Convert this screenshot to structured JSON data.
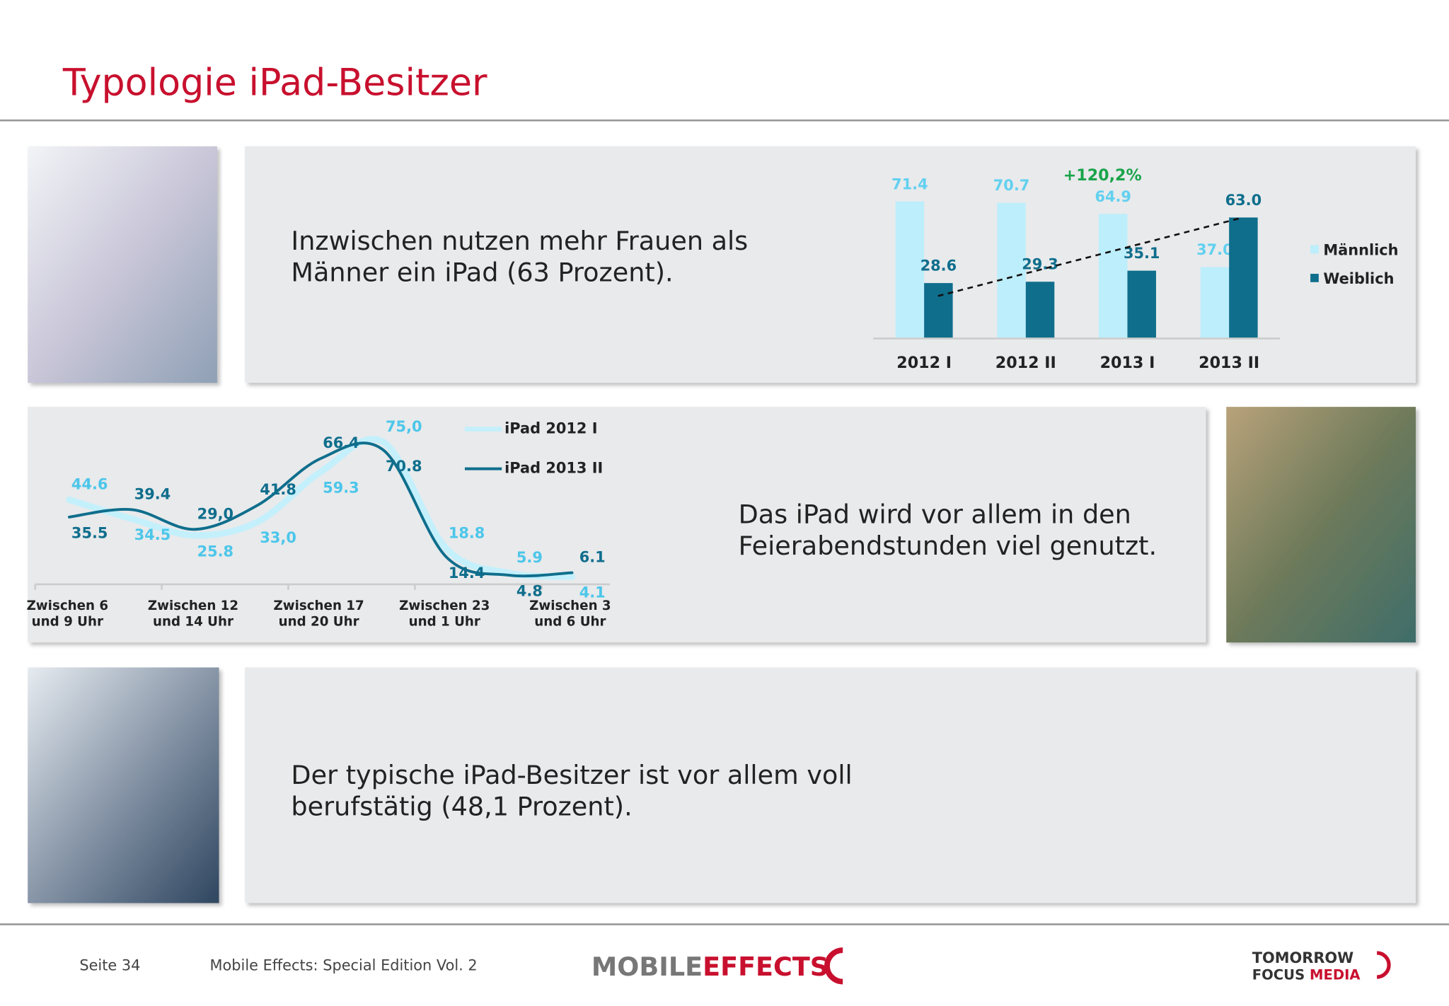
{
  "title": "Typologie iPad-Besitzer",
  "panels": [
    {
      "text": [
        "Inzwischen nutzen mehr Frauen als",
        "Männer ein iPad (63 Prozent)."
      ]
    },
    {
      "text": [
        "Das iPad wird vor allem in den",
        "Feierabendstunden viel genutzt."
      ]
    },
    {
      "text": [
        "Der typische iPad-Besitzer ist vor allem voll",
        "berufstätig (48,1 Prozent)."
      ]
    }
  ],
  "chart_data": [
    {
      "type": "bar",
      "categories": [
        "2012 I",
        "2012 II",
        "2013 I",
        "2013 II"
      ],
      "series": [
        {
          "name": "Männlich",
          "color": "#bdeefc",
          "label_color": "#62d0ef",
          "values": [
            71.4,
            70.7,
            64.9,
            37.0
          ],
          "value_labels": [
            "71.4",
            "70.7",
            "64.9",
            "37.0"
          ]
        },
        {
          "name": "Weiblich",
          "color": "#0f6e8c",
          "label_color": "#0f6e8c",
          "values": [
            28.6,
            29.3,
            35.1,
            63.0
          ],
          "value_labels": [
            "28.6",
            "29.3",
            "35.1",
            "63.0"
          ]
        }
      ],
      "annotation": "+120,2%",
      "ylim": [
        0,
        80
      ],
      "legend": "right"
    },
    {
      "type": "line",
      "categories": [
        [
          "Zwischen 6",
          "und 9 Uhr"
        ],
        null,
        [
          "Zwischen 12",
          "und 14 Uhr"
        ],
        null,
        [
          "Zwischen 17",
          "und 20 Uhr"
        ],
        null,
        [
          "Zwischen 23",
          "und 1 Uhr"
        ],
        null,
        [
          "Zwischen 3",
          "und 6 Uhr"
        ]
      ],
      "series": [
        {
          "name": "iPad 2012 I",
          "color": "#c4f0fc",
          "label_color": "#4cc6ea",
          "values": [
            44.6,
            34.5,
            25.8,
            33.0,
            59.3,
            75.0,
            18.8,
            5.9,
            4.1
          ],
          "value_labels": [
            "44.6",
            "34.5",
            "25.8",
            "33,0",
            "59.3",
            "75,0",
            "18.8",
            "5.9",
            "4.1"
          ]
        },
        {
          "name": "iPad 2013 II",
          "color": "#0f6e8c",
          "label_color": "#0f6e8c",
          "values": [
            35.5,
            39.4,
            29.0,
            41.8,
            66.4,
            70.8,
            14.4,
            4.8,
            6.1
          ],
          "value_labels": [
            "35.5",
            "39.4",
            "29,0",
            "41.8",
            "66.4",
            "70.8",
            "14.4",
            "4.8",
            "6.1"
          ]
        }
      ],
      "ylim": [
        0,
        80
      ],
      "legend": "top-right"
    }
  ],
  "footer": {
    "page": "Seite 34",
    "publication": "Mobile Effects: Special Edition Vol. 2",
    "logo_left": [
      "MOBILE",
      "EFFECTS"
    ],
    "logo_right": [
      "TOMORROW",
      "FOCUS",
      "MEDIA"
    ]
  }
}
